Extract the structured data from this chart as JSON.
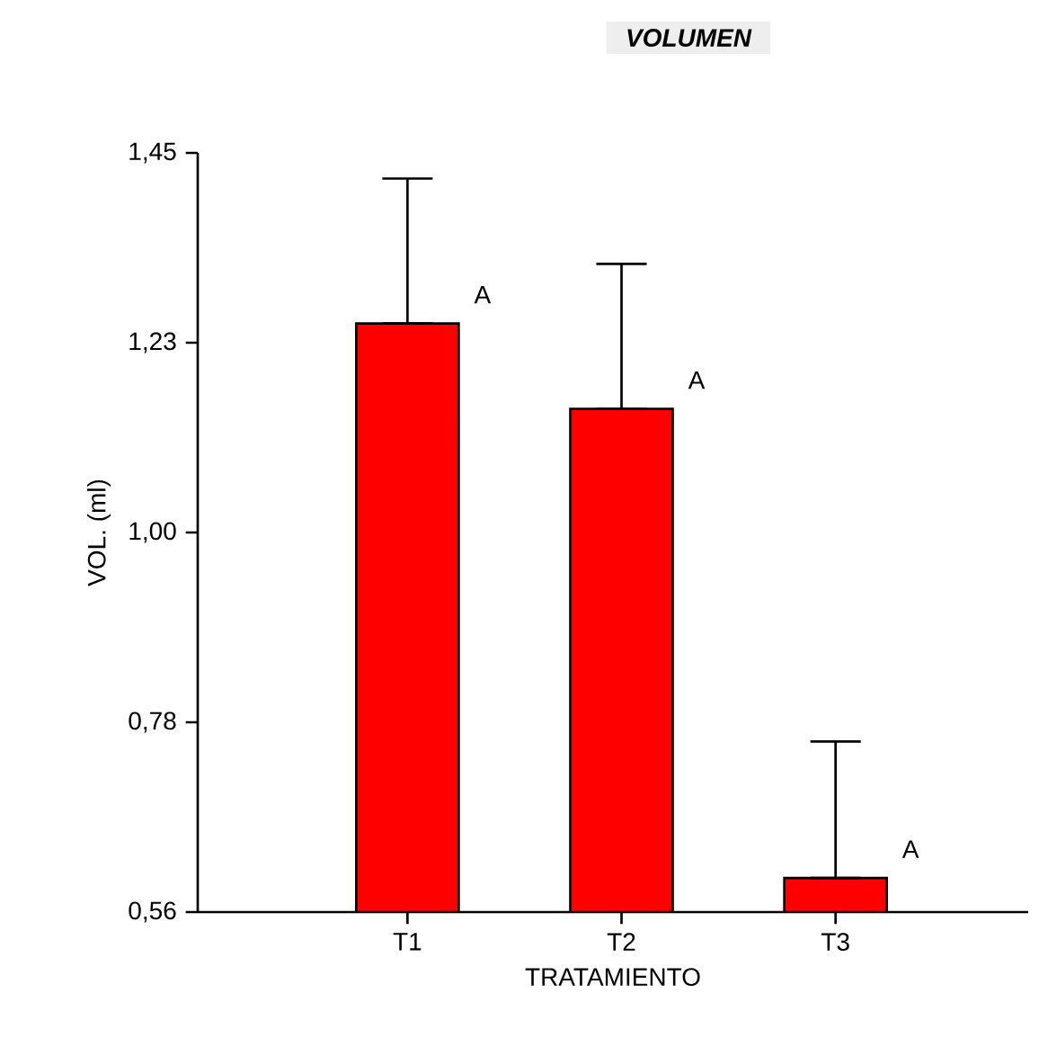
{
  "chart_data": {
    "type": "bar",
    "title": "VOLUMEN",
    "xlabel": "TRATAMIENTO",
    "ylabel": "VOL. (ml)",
    "categories": [
      "T1",
      "T2",
      "T3"
    ],
    "values": [
      1.25,
      1.15,
      0.6
    ],
    "errors": [
      [
        1.25,
        1.42
      ],
      [
        1.15,
        1.32
      ],
      [
        0.6,
        0.76
      ]
    ],
    "color": "#ff0000",
    "ylim": [
      0.56,
      1.45
    ],
    "yticks": [
      {
        "value": 0.56,
        "label": "0,56"
      },
      {
        "value": 0.7825,
        "label": "0,78"
      },
      {
        "value": 1.005,
        "label": "1,00"
      },
      {
        "value": 1.2275,
        "label": "1,23"
      },
      {
        "value": 1.45,
        "label": "1,45"
      }
    ],
    "annotations": [
      {
        "text": "A",
        "x": "T1",
        "y": 1.25
      },
      {
        "text": "A",
        "x": "T2",
        "y": 1.15
      },
      {
        "text": "A",
        "x": "T3",
        "y": 0.6
      }
    ]
  }
}
